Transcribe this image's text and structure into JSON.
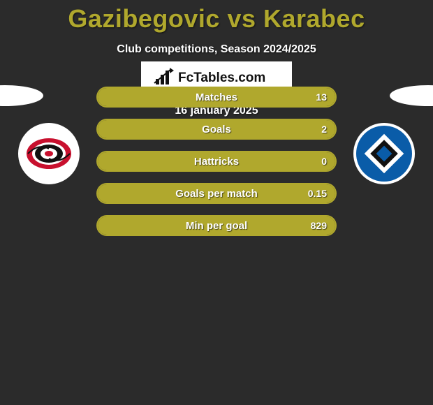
{
  "title_parts": {
    "p1": "Gazibegovic",
    "vs": " vs ",
    "p2": "Karabec"
  },
  "title_color": "#b0a82d",
  "subtitle": "Club competitions, Season 2024/2025",
  "accent_color": "#b0a82d",
  "fill_percent": 100,
  "stats": [
    {
      "label": "Matches",
      "value": "13"
    },
    {
      "label": "Goals",
      "value": "2"
    },
    {
      "label": "Hattricks",
      "value": "0"
    },
    {
      "label": "Goals per match",
      "value": "0.15"
    },
    {
      "label": "Min per goal",
      "value": "829"
    }
  ],
  "brand_text": "FcTables.com",
  "date": "16 january 2025",
  "logo_left": {
    "outer_ring": "#c8102e",
    "mid_ring": "#111111",
    "inner": "#ffffff"
  },
  "logo_right": {
    "outer": "#0a5ca8",
    "diamond_outer": "#ffffff",
    "diamond_mid": "#111111",
    "diamond_inner": "#0a5ca8"
  }
}
